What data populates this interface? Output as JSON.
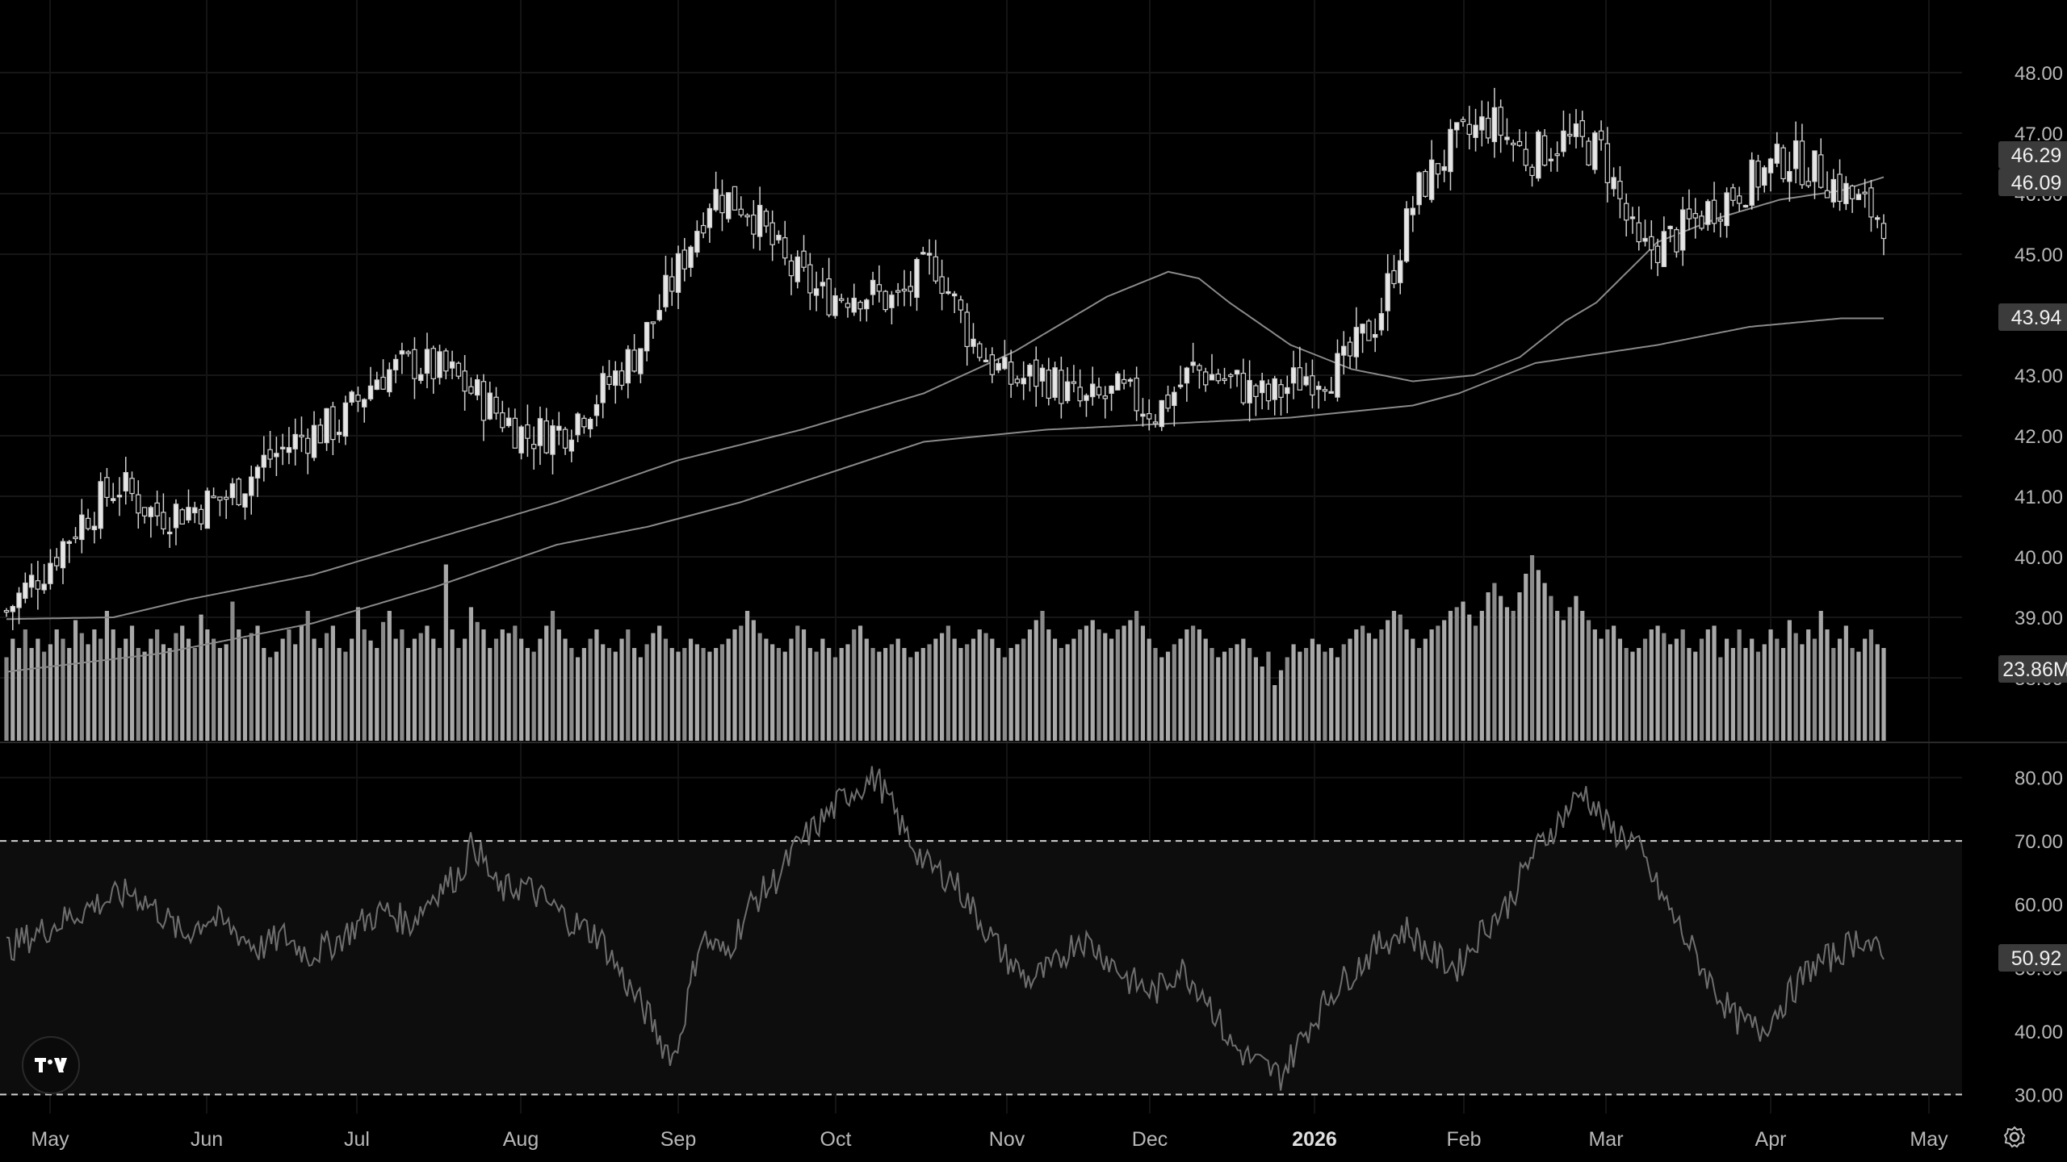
{
  "chart_data": [
    {
      "type": "candlestick",
      "panel": "price",
      "y_ticks": [
        "48.00",
        "47.00",
        "46.00",
        "45.00",
        "43.00",
        "42.00",
        "41.00",
        "40.00",
        "39.00",
        "38.00"
      ],
      "ylim": [
        37.2,
        48.4
      ],
      "x_labels": [
        "May",
        "Jun",
        "Jul",
        "Aug",
        "Sep",
        "Oct",
        "Nov",
        "Dec",
        "2026",
        "Feb",
        "Mar",
        "Apr",
        "May"
      ],
      "x_label_bold": "2026",
      "series": [
        {
          "name": "",
          "kind": "close",
          "anchors": [
            [
              0,
              39.1
            ],
            [
              10,
              39.8
            ],
            [
              20,
              40.6
            ],
            [
              30,
              41.2
            ],
            [
              40,
              40.7
            ],
            [
              50,
              40.8
            ],
            [
              60,
              41.0
            ],
            [
              70,
              41.6
            ],
            [
              80,
              42.0
            ],
            [
              90,
              42.2
            ],
            [
              100,
              43.0
            ],
            [
              110,
              43.2
            ],
            [
              120,
              43.0
            ],
            [
              130,
              42.5
            ],
            [
              140,
              42.0
            ],
            [
              150,
              42.1
            ],
            [
              160,
              42.7
            ],
            [
              170,
              43.4
            ],
            [
              180,
              44.6
            ],
            [
              190,
              46.0
            ],
            [
              200,
              45.8
            ],
            [
              210,
              44.8
            ],
            [
              220,
              44.3
            ],
            [
              230,
              44.4
            ],
            [
              240,
              44.2
            ],
            [
              250,
              44.9
            ],
            [
              260,
              43.6
            ],
            [
              270,
              42.9
            ],
            [
              280,
              43.0
            ],
            [
              290,
              42.5
            ],
            [
              300,
              42.7
            ],
            [
              310,
              42.4
            ],
            [
              320,
              43.1
            ],
            [
              330,
              42.9
            ],
            [
              340,
              42.6
            ],
            [
              350,
              43.0
            ],
            [
              360,
              43.1
            ],
            [
              370,
              44.0
            ],
            [
              380,
              46.0
            ],
            [
              390,
              46.8
            ],
            [
              400,
              47.2
            ],
            [
              410,
              46.6
            ],
            [
              420,
              46.9
            ],
            [
              430,
              46.7
            ],
            [
              440,
              45.0
            ],
            [
              450,
              45.3
            ],
            [
              460,
              45.8
            ],
            [
              470,
              46.2
            ],
            [
              480,
              46.6
            ],
            [
              490,
              46.3
            ],
            [
              500,
              45.8
            ],
            [
              506,
              45.6
            ]
          ]
        },
        {
          "name": "",
          "kind": "ma",
          "anchors": [
            [
              0,
              38.97
            ],
            [
              35,
              39.0
            ],
            [
              60,
              39.3
            ],
            [
              100,
              39.7
            ],
            [
              140,
              40.3
            ],
            [
              180,
              40.9
            ],
            [
              220,
              41.6
            ],
            [
              260,
              42.1
            ],
            [
              300,
              42.7
            ],
            [
              330,
              43.4
            ],
            [
              360,
              44.3
            ],
            [
              380,
              44.71
            ],
            [
              390,
              44.6
            ],
            [
              400,
              44.2
            ],
            [
              420,
              43.5
            ],
            [
              440,
              43.1
            ],
            [
              460,
              42.9
            ],
            [
              480,
              43.0
            ],
            [
              495,
              43.3
            ],
            [
              510,
              43.9
            ],
            [
              520,
              44.2
            ],
            [
              540,
              45.2
            ],
            [
              560,
              45.6
            ],
            [
              580,
              45.9
            ],
            [
              600,
              46.05
            ],
            [
              615,
              46.29
            ]
          ]
        },
        {
          "name": "",
          "kind": "ma",
          "anchors": [
            [
              0,
              38.1
            ],
            [
              50,
              38.4
            ],
            [
              100,
              38.9
            ],
            [
              140,
              39.5
            ],
            [
              180,
              40.2
            ],
            [
              210,
              40.5
            ],
            [
              240,
              40.9
            ],
            [
              270,
              41.4
            ],
            [
              300,
              41.9
            ],
            [
              340,
              42.1
            ],
            [
              380,
              42.2
            ],
            [
              420,
              42.3
            ],
            [
              460,
              42.5
            ],
            [
              475,
              42.7
            ],
            [
              500,
              43.2
            ],
            [
              540,
              43.5
            ],
            [
              570,
              43.8
            ],
            [
              600,
              43.94
            ]
          ]
        }
      ],
      "price_labels": [
        "46.29",
        "46.09",
        "43.94"
      ],
      "last_close": 46.09,
      "colors": {
        "background": "#000000",
        "grid": "#1a1a1a",
        "text": "#b8b8b8",
        "label_bg": "#3a3a3a",
        "candle": "#d4d4d4"
      }
    },
    {
      "type": "bar",
      "panel": "volume",
      "label": "23.86M",
      "relative_heights": [
        0.45,
        0.55,
        0.5,
        0.6,
        0.5,
        0.55,
        0.48,
        0.52,
        0.6,
        0.55,
        0.5,
        0.65,
        0.58,
        0.52,
        0.6,
        0.55,
        0.7,
        0.6,
        0.5,
        0.55,
        0.62,
        0.5,
        0.48,
        0.55,
        0.6,
        0.52,
        0.5,
        0.58,
        0.62,
        0.55,
        0.5,
        0.68,
        0.6,
        0.55,
        0.5,
        0.52,
        0.75,
        0.6,
        0.55,
        0.58,
        0.62,
        0.5,
        0.45,
        0.48,
        0.55,
        0.6,
        0.52,
        0.62,
        0.7,
        0.55,
        0.5,
        0.58,
        0.62,
        0.5,
        0.48,
        0.55,
        0.72,
        0.6,
        0.54,
        0.5,
        0.64,
        0.7,
        0.55,
        0.6,
        0.5,
        0.55,
        0.58,
        0.62,
        0.55,
        0.5,
        0.95,
        0.6,
        0.5,
        0.55,
        0.72,
        0.64,
        0.6,
        0.5,
        0.55,
        0.6,
        0.58,
        0.62,
        0.55,
        0.5,
        0.48,
        0.55,
        0.62,
        0.7,
        0.6,
        0.55,
        0.5,
        0.45,
        0.5,
        0.55,
        0.6,
        0.52,
        0.5,
        0.48,
        0.55,
        0.6,
        0.5,
        0.45,
        0.52,
        0.58,
        0.62,
        0.55,
        0.5,
        0.48,
        0.5,
        0.55,
        0.52,
        0.5,
        0.48,
        0.5,
        0.52,
        0.55,
        0.6,
        0.62,
        0.7,
        0.65,
        0.58,
        0.55,
        0.52,
        0.5,
        0.48,
        0.55,
        0.62,
        0.6,
        0.5,
        0.48,
        0.55,
        0.5,
        0.45,
        0.5,
        0.52,
        0.6,
        0.62,
        0.55,
        0.5,
        0.48,
        0.5,
        0.52,
        0.55,
        0.5,
        0.45,
        0.48,
        0.5,
        0.52,
        0.55,
        0.58,
        0.62,
        0.55,
        0.5,
        0.52,
        0.55,
        0.6,
        0.58,
        0.55,
        0.5,
        0.45,
        0.5,
        0.52,
        0.55,
        0.6,
        0.65,
        0.7,
        0.6,
        0.55,
        0.5,
        0.52,
        0.55,
        0.6,
        0.62,
        0.65,
        0.6,
        0.58,
        0.55,
        0.6,
        0.62,
        0.65,
        0.7,
        0.62,
        0.55,
        0.5,
        0.45,
        0.48,
        0.52,
        0.55,
        0.6,
        0.62,
        0.6,
        0.55,
        0.5,
        0.45,
        0.48,
        0.5,
        0.52,
        0.55,
        0.5,
        0.45,
        0.4,
        0.48,
        0.3,
        0.38,
        0.45,
        0.52,
        0.48,
        0.5,
        0.55,
        0.52,
        0.48,
        0.5,
        0.45,
        0.52,
        0.55,
        0.6,
        0.62,
        0.58,
        0.55,
        0.6,
        0.65,
        0.7,
        0.68,
        0.6,
        0.55,
        0.5,
        0.55,
        0.6,
        0.62,
        0.65,
        0.7,
        0.72,
        0.75,
        0.68,
        0.62,
        0.7,
        0.8,
        0.85,
        0.78,
        0.72,
        0.7,
        0.8,
        0.9,
        1.0,
        0.92,
        0.85,
        0.78,
        0.7,
        0.65,
        0.72,
        0.78,
        0.7,
        0.65,
        0.6,
        0.55,
        0.6,
        0.62,
        0.55,
        0.5,
        0.48,
        0.5,
        0.55,
        0.6,
        0.62,
        0.58,
        0.52,
        0.55,
        0.6,
        0.5,
        0.48,
        0.55,
        0.6,
        0.62
      ],
      "colors": {
        "bar": "#9a9a9a"
      }
    },
    {
      "type": "line",
      "panel": "rsi",
      "y_ticks": [
        "80.00",
        "70.00",
        "60.00",
        "50.00",
        "40.00",
        "30.00"
      ],
      "ylim": [
        27,
        83
      ],
      "bands": [
        70,
        30
      ],
      "anchors": [
        [
          0,
          53
        ],
        [
          10,
          55
        ],
        [
          20,
          57
        ],
        [
          35,
          60
        ],
        [
          50,
          62
        ],
        [
          60,
          59
        ],
        [
          70,
          55
        ],
        [
          80,
          58
        ],
        [
          90,
          56
        ],
        [
          100,
          53
        ],
        [
          110,
          55
        ],
        [
          120,
          52
        ],
        [
          130,
          54
        ],
        [
          140,
          57
        ],
        [
          150,
          59
        ],
        [
          160,
          57
        ],
        [
          170,
          62
        ],
        [
          180,
          65
        ],
        [
          185,
          70
        ],
        [
          195,
          62
        ],
        [
          205,
          63
        ],
        [
          215,
          60
        ],
        [
          225,
          57
        ],
        [
          235,
          55
        ],
        [
          245,
          48
        ],
        [
          255,
          42
        ],
        [
          260,
          38
        ],
        [
          265,
          36
        ],
        [
          270,
          45
        ],
        [
          275,
          55
        ],
        [
          285,
          52
        ],
        [
          295,
          60
        ],
        [
          305,
          64
        ],
        [
          315,
          70
        ],
        [
          325,
          74
        ],
        [
          335,
          78
        ],
        [
          345,
          80
        ],
        [
          355,
          72
        ],
        [
          365,
          66
        ],
        [
          375,
          64
        ],
        [
          385,
          58
        ],
        [
          395,
          52
        ],
        [
          405,
          48
        ],
        [
          415,
          50
        ],
        [
          425,
          55
        ],
        [
          435,
          52
        ],
        [
          445,
          48
        ],
        [
          455,
          46
        ],
        [
          465,
          50
        ],
        [
          475,
          46
        ],
        [
          485,
          38
        ],
        [
          495,
          35
        ],
        [
          505,
          33
        ],
        [
          515,
          40
        ],
        [
          525,
          46
        ],
        [
          535,
          50
        ],
        [
          545,
          54
        ],
        [
          555,
          56
        ],
        [
          565,
          52
        ],
        [
          575,
          50
        ],
        [
          585,
          56
        ],
        [
          595,
          60
        ],
        [
          605,
          68
        ],
        [
          615,
          73
        ],
        [
          625,
          78
        ],
        [
          635,
          72
        ],
        [
          645,
          70
        ],
        [
          655,
          62
        ],
        [
          665,
          55
        ],
        [
          675,
          48
        ],
        [
          685,
          42
        ],
        [
          695,
          40
        ],
        [
          705,
          45
        ],
        [
          715,
          50
        ],
        [
          725,
          52
        ],
        [
          735,
          55
        ],
        [
          745,
          50.92
        ]
      ],
      "value_label": "50.92",
      "colors": {
        "line": "#6e6e6e",
        "band_fill": "#0d0d0d"
      }
    }
  ],
  "ui": {
    "logo_icon": "tradingview-logo-icon",
    "settings_icon": "gear-icon"
  }
}
